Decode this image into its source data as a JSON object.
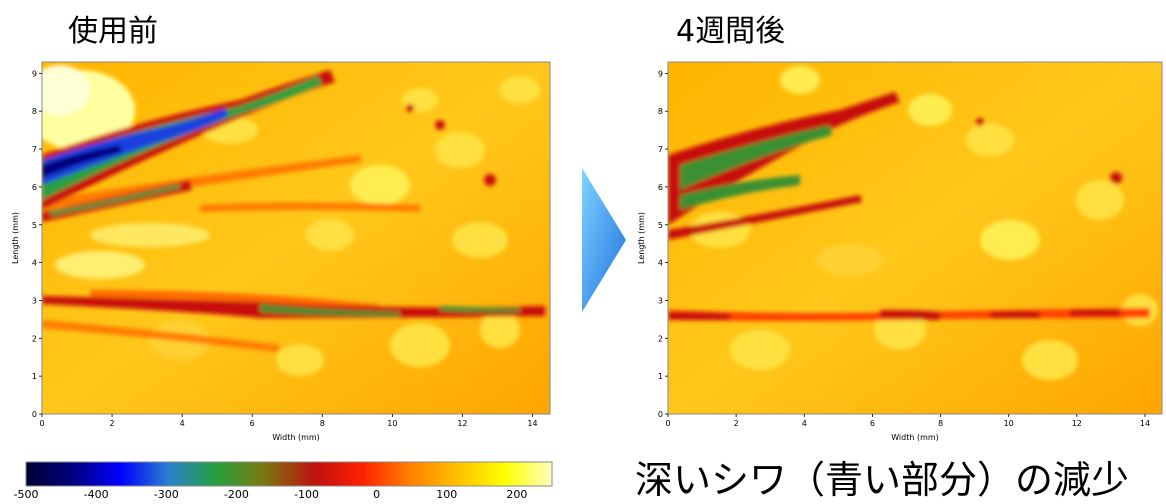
{
  "titles": {
    "before": "使用前",
    "after": "4週間後"
  },
  "caption": "深いシワ（青い部分）の減少",
  "axes": {
    "xlabel": "Width (mm)",
    "ylabel": "Length (mm)",
    "xticks": [
      "0",
      "2",
      "4",
      "6",
      "8",
      "10",
      "12",
      "14"
    ],
    "yticks": [
      "0",
      "1",
      "2",
      "3",
      "4",
      "5",
      "6",
      "7",
      "8",
      "9"
    ]
  },
  "colorbar": {
    "ticks": [
      "-500",
      "-400",
      "-300",
      "-200",
      "-100",
      "0",
      "100",
      "200"
    ],
    "colors": [
      "#000033",
      "#000080",
      "#0000ff",
      "#2a7fd0",
      "#24a040",
      "#7a7a10",
      "#c01010",
      "#ff2000",
      "#ff8000",
      "#ffc000",
      "#ffff00",
      "#ffffc0"
    ]
  },
  "arrow_color": "#3a8fe8"
}
